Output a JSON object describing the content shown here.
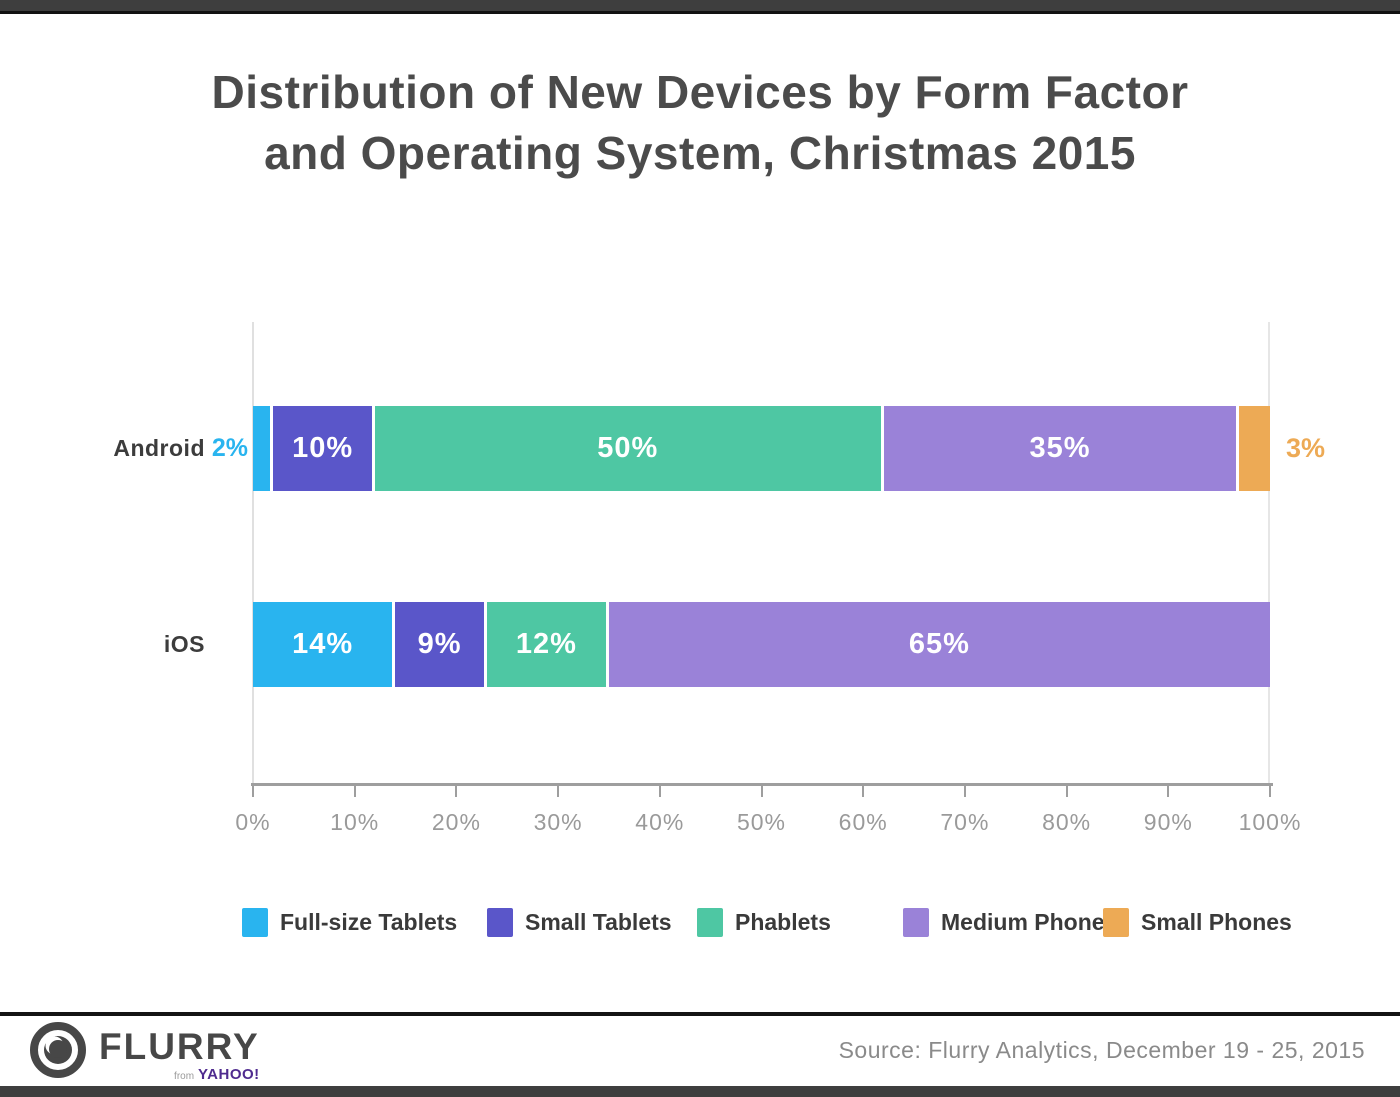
{
  "title_line1": "Distribution of New Devices by Form Factor",
  "title_line2": "and Operating System, Christmas 2015",
  "chart_data": {
    "type": "bar",
    "stacked": true,
    "orientation": "horizontal",
    "title": "Distribution of New Devices by Form Factor and Operating System, Christmas 2015",
    "categories": [
      "Android",
      "iOS"
    ],
    "series": [
      {
        "name": "Full-size Tablets",
        "color": "#29b4ef",
        "values": [
          2,
          14
        ]
      },
      {
        "name": "Small Tablets",
        "color": "#5a56c9",
        "values": [
          10,
          9
        ]
      },
      {
        "name": "Phablets",
        "color": "#4ec7a3",
        "values": [
          50,
          12
        ]
      },
      {
        "name": "Medium Phones",
        "color": "#9a82d8",
        "values": [
          35,
          65
        ]
      },
      {
        "name": "Small Phones",
        "color": "#edaa55",
        "values": [
          3,
          0
        ]
      }
    ],
    "bars": [
      {
        "os": "Android",
        "segments": [
          {
            "series": "Full-size Tablets",
            "value": 2,
            "display": "2%",
            "label_placement": "outside-left"
          },
          {
            "series": "Small Tablets",
            "value": 10,
            "display": "10%",
            "label_placement": "inside"
          },
          {
            "series": "Phablets",
            "value": 50,
            "display": "50%",
            "label_placement": "inside"
          },
          {
            "series": "Medium Phones",
            "value": 35,
            "display": "35%",
            "label_placement": "inside"
          },
          {
            "series": "Small Phones",
            "value": 3,
            "display": "3%",
            "label_placement": "outside-right"
          }
        ]
      },
      {
        "os": "iOS",
        "segments": [
          {
            "series": "Full-size Tablets",
            "value": 14,
            "display": "14%",
            "label_placement": "inside"
          },
          {
            "series": "Small Tablets",
            "value": 9,
            "display": "9%",
            "label_placement": "inside"
          },
          {
            "series": "Phablets",
            "value": 12,
            "display": "12%",
            "label_placement": "inside"
          },
          {
            "series": "Medium Phones",
            "value": 65,
            "display": "65%",
            "label_placement": "inside"
          }
        ]
      }
    ],
    "xlim": [
      0,
      100
    ],
    "x_ticks": [
      "0%",
      "10%",
      "20%",
      "30%",
      "40%",
      "50%",
      "60%",
      "70%",
      "80%",
      "90%",
      "100%"
    ],
    "legend": [
      "Full-size Tablets",
      "Small Tablets",
      "Phablets",
      "Medium Phones",
      "Small Phones"
    ],
    "legend_position": "bottom",
    "grid": "edge-lines-only"
  },
  "footer": {
    "logo_name": "FLURRY",
    "logo_from": "from",
    "logo_brand": "YAHOO!",
    "source": "Source: Flurry Analytics, December 19 - 25, 2015"
  },
  "colors": {
    "full_size_tablets": "#29b4ef",
    "small_tablets": "#5a56c9",
    "phablets": "#4ec7a3",
    "medium_phones": "#9a82d8",
    "small_phones": "#edaa55",
    "top_bottom_bar": "#3e3e3e",
    "title_text": "#4b4b4b",
    "axis_text": "#9a9a9a",
    "yahoo_purple": "#4f2b8f"
  }
}
